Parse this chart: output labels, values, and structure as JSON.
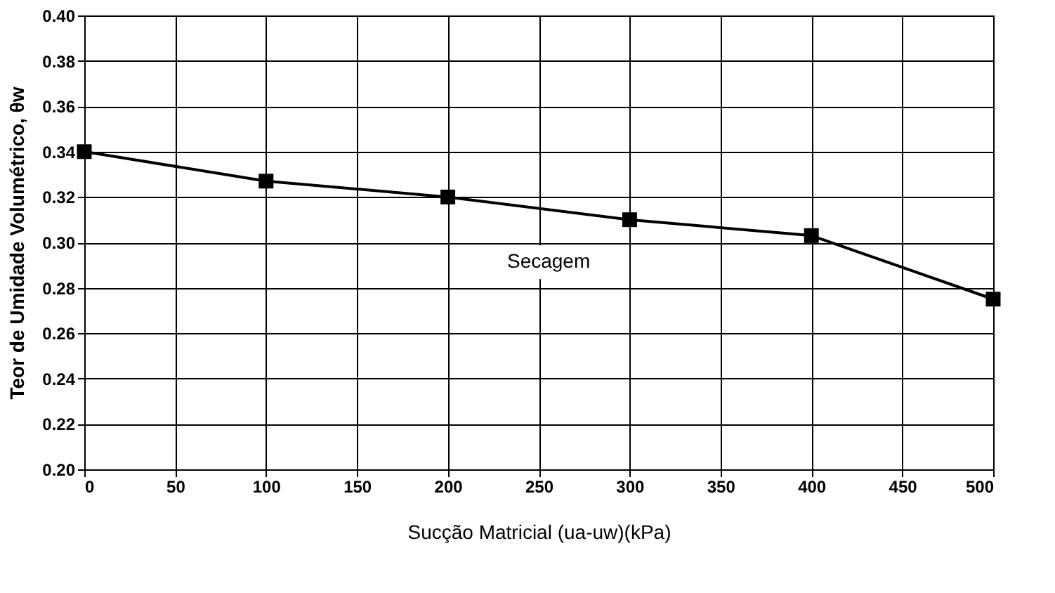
{
  "chart_data": {
    "type": "line",
    "xlabel": "Sucção Matricial (ua-uw)(kPa)",
    "ylabel": "Teor de Umidade Volumétrico, θw",
    "x": [
      0,
      100,
      200,
      300,
      400,
      500
    ],
    "series": [
      {
        "color": "#000000",
        "values": [
          0.34,
          0.327,
          0.32,
          0.31,
          0.303,
          0.275
        ]
      }
    ],
    "xlim": [
      0,
      500
    ],
    "xticks": [
      0,
      50,
      100,
      150,
      200,
      250,
      300,
      350,
      400,
      450,
      500
    ],
    "ylim": [
      0.2,
      0.4
    ],
    "yticks": [
      {
        "value": 0.2,
        "label": "0.20"
      },
      {
        "value": 0.22,
        "label": "0.22"
      },
      {
        "value": 0.24,
        "label": "0.24"
      },
      {
        "value": 0.26,
        "label": "0.26"
      },
      {
        "value": 0.28,
        "label": "0.28"
      },
      {
        "value": 0.3,
        "label": "0.30"
      },
      {
        "value": 0.32,
        "label": "0.32"
      },
      {
        "value": 0.34,
        "label": "0.34"
      },
      {
        "value": 0.36,
        "label": "0.36"
      },
      {
        "value": 0.38,
        "label": "0.38"
      },
      {
        "value": 0.4,
        "label": "0.40"
      }
    ],
    "annotations": [
      {
        "text": "Secagem",
        "x": 240,
        "y": 0.316
      }
    ],
    "grid": true,
    "marker": "square",
    "line_style": "solid"
  }
}
